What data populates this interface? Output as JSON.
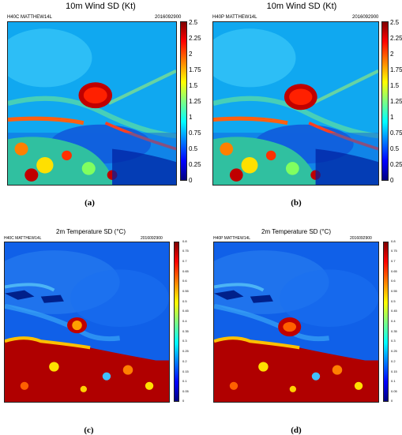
{
  "panels": [
    {
      "caption": "(a)",
      "title": "10m Wind SD (Kt)",
      "model": "H40C MATTHEW14L",
      "date": "2016092900",
      "colorbar_ticks": [
        "0",
        "0.25",
        "0.5",
        "0.75",
        "1",
        "1.25",
        "1.5",
        "1.75",
        "2",
        "2.25",
        "2.5"
      ]
    },
    {
      "caption": "(b)",
      "title": "10m Wind SD (Kt)",
      "model": "H40P MATTHEW14L",
      "date": "2016092900",
      "colorbar_ticks": [
        "0",
        "0.25",
        "0.5",
        "0.75",
        "1",
        "1.25",
        "1.5",
        "1.75",
        "2",
        "2.25",
        "2.5"
      ]
    },
    {
      "caption": "(c)",
      "title": "2m Temperature SD (°C)",
      "model": "H40C MATTHEW14L",
      "date": "2016092900",
      "colorbar_ticks": [
        "0",
        "0.05",
        "0.1",
        "0.15",
        "0.2",
        "0.25",
        "0.3",
        "0.35",
        "0.4",
        "0.45",
        "0.5",
        "0.55",
        "0.6",
        "0.65",
        "0.7",
        "0.75",
        "0.8"
      ]
    },
    {
      "caption": "(d)",
      "title": "2m Temperature SD (°C)",
      "model": "H40P MATTHEW14L",
      "date": "2016092900",
      "colorbar_ticks": [
        "0",
        "0.05",
        "0.1",
        "0.15",
        "0.2",
        "0.25",
        "0.3",
        "0.35",
        "0.4",
        "0.45",
        "0.5",
        "0.55",
        "0.6",
        "0.65",
        "0.7",
        "0.75",
        "0.8"
      ]
    }
  ]
}
